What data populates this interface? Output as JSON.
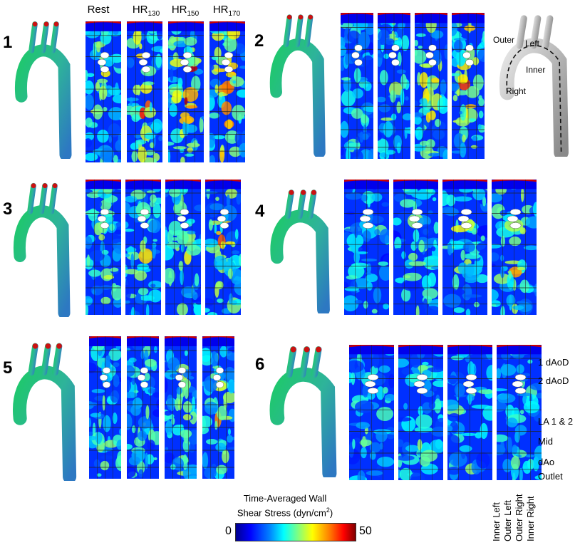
{
  "column_headers": {
    "rest": "Rest",
    "hr130": {
      "base": "HR",
      "sub": "130"
    },
    "hr150": {
      "base": "HR",
      "sub": "150"
    },
    "hr170": {
      "base": "HR",
      "sub": "170"
    }
  },
  "cases": [
    {
      "number": "1",
      "maps": 4,
      "intensity": [
        0.45,
        0.85,
        0.9,
        0.95
      ]
    },
    {
      "number": "2",
      "maps": 4,
      "intensity": [
        0.2,
        0.35,
        0.55,
        0.75
      ]
    },
    {
      "number": "3",
      "maps": 4,
      "intensity": [
        0.35,
        0.45,
        0.5,
        0.55
      ]
    },
    {
      "number": "4",
      "maps": 4,
      "intensity": [
        0.15,
        0.2,
        0.35,
        0.5
      ]
    },
    {
      "number": "5",
      "maps": 4,
      "intensity": [
        0.25,
        0.3,
        0.4,
        0.45
      ]
    },
    {
      "number": "6",
      "maps": 4,
      "intensity": [
        0.2,
        0.22,
        0.3,
        0.32
      ]
    }
  ],
  "schematic_labels": {
    "outer": "Outer",
    "left": "Left",
    "inner": "Inner",
    "right": "Right"
  },
  "segment_labels": [
    "1 dAoD",
    "2 dAoD",
    "LA 1 & 2",
    "Mid",
    "dAo",
    "Outlet"
  ],
  "position_labels": [
    "Inner Left",
    "Outer Left",
    "Outer Right",
    "Inner Right"
  ],
  "legend": {
    "title_line1": "Time-Averaged Wall",
    "title_line2_prefix": "Shear Stress (dyn/cm",
    "title_line2_sup": "2",
    "title_line2_suffix": ")",
    "min": "0",
    "max": "50"
  },
  "colors": {
    "low": "#0000ff",
    "mid": "#00ff80",
    "high": "#ff0000",
    "aorta_gray": "#bdbdbd"
  }
}
